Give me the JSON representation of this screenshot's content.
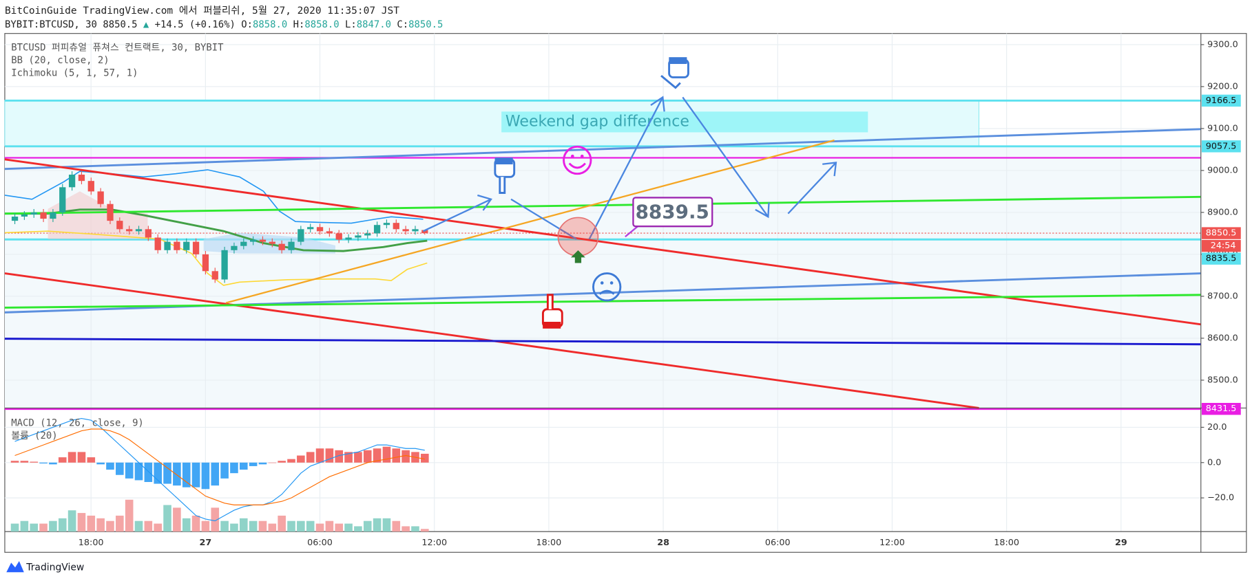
{
  "header": {
    "published": "BitCoinGuide TradingView.com 에서 퍼블리쉬, 5월 27, 2020 11:35:07 JST",
    "symbol": "BYBIT:BTCUSD, 30",
    "last": "8850.5",
    "arrow": "▲",
    "change": "+14.5 (+0.16%)",
    "ohlc": [
      {
        "key": "O:",
        "value": "8858.0"
      },
      {
        "key": "H:",
        "value": "8858.0"
      },
      {
        "key": "L:",
        "value": "8847.0"
      },
      {
        "key": "C:",
        "value": "8850.5"
      }
    ]
  },
  "legend": [
    "BTCUSD 퍼피츄얼 퓨쳐스 컨트랙트, 30, BYBIT",
    "BB (20, close, 2)",
    "Ichimoku (5, 1, 57, 1)"
  ],
  "macd_legend": [
    "MACD (12, 26, close, 9)",
    "볼륨 (20)"
  ],
  "annotations": {
    "gap": "Weekend gap difference",
    "price": "8839.5"
  },
  "brand": "TradingView",
  "chart_data": {
    "type": "candlestick",
    "up_color": "#26a69a",
    "down_color": "#ef5350",
    "open": [
      8880,
      8890,
      8895,
      8900,
      8885,
      8900,
      8960,
      8990,
      8975,
      8950,
      8920,
      8880,
      8860,
      8855,
      8860,
      8840,
      8810,
      8830,
      8810,
      8830,
      8800,
      8760,
      8740,
      8810,
      8820,
      8830,
      8835,
      8830,
      8825,
      8810,
      8830,
      8860,
      8865,
      8855,
      8850,
      8835,
      8840,
      8845,
      8850,
      8870,
      8875,
      8860,
      8855,
      8858
    ],
    "high": [
      8898,
      8903,
      8908,
      8908,
      8908,
      8968,
      8998,
      8998,
      8983,
      8958,
      8928,
      8888,
      8868,
      8868,
      8868,
      8848,
      8838,
      8838,
      8838,
      8838,
      8808,
      8768,
      8818,
      8828,
      8838,
      8843,
      8843,
      8838,
      8833,
      8838,
      8868,
      8873,
      8873,
      8863,
      8858,
      8848,
      8853,
      8858,
      8878,
      8883,
      8883,
      8868,
      8868,
      8858
    ],
    "low": [
      8872,
      8882,
      8887,
      8877,
      8877,
      8892,
      8952,
      8967,
      8942,
      8912,
      8872,
      8852,
      8847,
      8847,
      8832,
      8802,
      8802,
      8802,
      8802,
      8792,
      8752,
      8732,
      8732,
      8802,
      8812,
      8822,
      8822,
      8817,
      8802,
      8802,
      8822,
      8852,
      8847,
      8842,
      8827,
      8827,
      8832,
      8837,
      8842,
      8862,
      8852,
      8847,
      8847,
      8847
    ],
    "close": [
      8890,
      8895,
      8900,
      8885,
      8900,
      8960,
      8990,
      8975,
      8950,
      8920,
      8880,
      8860,
      8855,
      8860,
      8840,
      8810,
      8830,
      8810,
      8830,
      8800,
      8760,
      8740,
      8810,
      8820,
      8830,
      8835,
      8830,
      8825,
      8810,
      8830,
      8860,
      8865,
      8855,
      8850,
      8835,
      8840,
      8845,
      8850,
      8870,
      8875,
      8860,
      8855,
      8860,
      8850.5
    ],
    "ylim": [
      8433.5,
      9326.6
    ],
    "yticks": [
      {
        "value": 9300,
        "label": "9300.0"
      },
      {
        "value": 9200,
        "label": "9200.0"
      },
      {
        "value": 9100,
        "label": "9100.0"
      },
      {
        "value": 9000,
        "label": "9000.0"
      },
      {
        "value": 8900,
        "label": "8900.0"
      },
      {
        "value": 8800,
        "label": "8800.0"
      },
      {
        "value": 8700,
        "label": "8700.0"
      },
      {
        "value": 8600,
        "label": "8600.0"
      },
      {
        "value": 8500,
        "label": "8500.0"
      }
    ],
    "grid": true,
    "levels": [
      {
        "value": 9166.5,
        "color": "#5ce1ef",
        "style": "solid"
      },
      {
        "value": 9057.5,
        "color": "#5ce1ef",
        "style": "solid"
      },
      {
        "value": 8850.5,
        "color": "#ef5350",
        "style": "dotted",
        "timer": "24:54"
      },
      {
        "value": 8835.5,
        "color": "#5ce1ef",
        "style": "solid"
      },
      {
        "value": 8431.5,
        "color": "#e91ee3",
        "style": "solid"
      }
    ],
    "xticks": [
      "18:00",
      "27",
      "06:00",
      "12:00",
      "18:00",
      "28",
      "06:00",
      "12:00",
      "18:00",
      "29"
    ],
    "macd": {
      "ylim": [
        -39.1,
        30.9
      ],
      "yticks": [
        {
          "value": 20,
          "label": "20.0"
        },
        {
          "value": 0,
          "label": "0.0"
        },
        {
          "value": -20,
          "label": "−20.0"
        }
      ],
      "histogram": [
        1,
        1,
        0.5,
        -0.5,
        -1,
        3,
        6,
        6,
        3,
        -1,
        -4,
        -7,
        -9,
        -10,
        -11,
        -12,
        -12,
        -13,
        -14,
        -14,
        -15,
        -13,
        -9,
        -6,
        -4,
        -2,
        -1,
        0,
        1,
        2,
        4,
        6,
        8,
        8,
        7,
        6,
        6,
        7,
        8,
        9,
        8,
        7,
        6,
        5
      ],
      "macd_line": [
        12,
        14,
        16,
        18,
        20,
        22,
        24,
        25,
        24,
        20,
        15,
        10,
        5,
        0,
        -5,
        -10,
        -15,
        -20,
        -25,
        -30,
        -32,
        -33,
        -30,
        -27,
        -25,
        -24,
        -24,
        -22,
        -18,
        -12,
        -6,
        -2,
        0,
        2,
        4,
        5,
        6,
        8,
        10,
        10,
        9,
        8,
        8,
        7
      ],
      "signal_line": [
        4,
        6,
        8,
        10,
        12,
        14,
        16,
        18,
        19,
        19,
        18,
        16,
        13,
        9,
        5,
        1,
        -3,
        -7,
        -11,
        -15,
        -19,
        -21,
        -23,
        -24,
        -24,
        -24,
        -24,
        -23,
        -22,
        -20,
        -17,
        -14,
        -11,
        -8,
        -6,
        -4,
        -2,
        0,
        1,
        2,
        3,
        4,
        3,
        2
      ],
      "macd_color": "#2196f3",
      "signal_color": "#ff6d00"
    },
    "volume": [
      3,
      4,
      3,
      3,
      4,
      5,
      8,
      7,
      6,
      5,
      4,
      6,
      12,
      4,
      4,
      3,
      10,
      9,
      5,
      6,
      4,
      9,
      4,
      3,
      5,
      4,
      4,
      3,
      6,
      4,
      4,
      4,
      3,
      4,
      3,
      3,
      2,
      4,
      5,
      5,
      4,
      2,
      2,
      1
    ]
  }
}
